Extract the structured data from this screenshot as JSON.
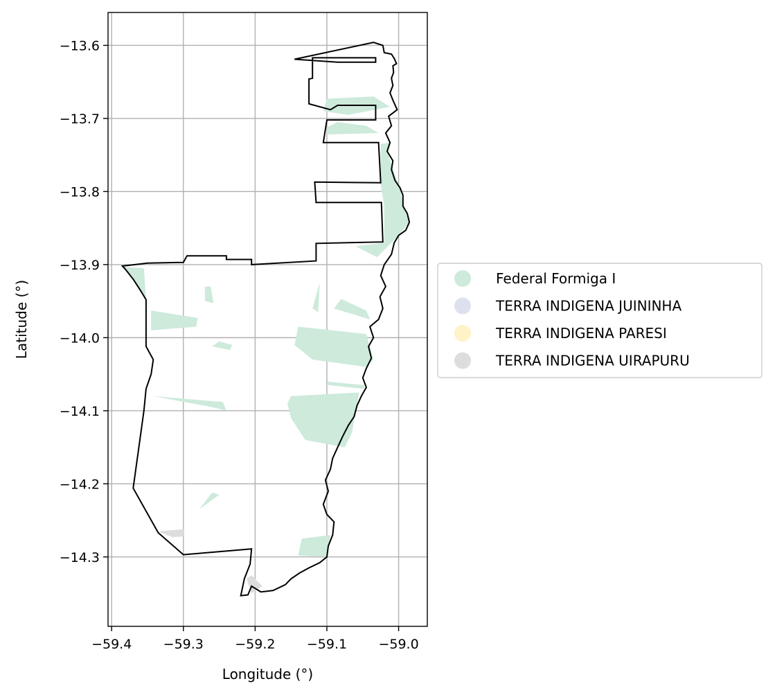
{
  "chart_data": {
    "type": "map",
    "xlabel": "Longitude (°)",
    "ylabel": "Latitude (°)",
    "xlim": [
      -59.405,
      -58.96
    ],
    "ylim": [
      -14.395,
      -13.555
    ],
    "grid": true,
    "xticks": [
      {
        "value": -59.4,
        "label": "−59.4"
      },
      {
        "value": -59.3,
        "label": "−59.3"
      },
      {
        "value": -59.2,
        "label": "−59.2"
      },
      {
        "value": -59.1,
        "label": "−59.1"
      },
      {
        "value": -59.0,
        "label": "−59.0"
      }
    ],
    "yticks": [
      {
        "value": -13.6,
        "label": "−13.6"
      },
      {
        "value": -13.7,
        "label": "−13.7"
      },
      {
        "value": -13.8,
        "label": "−13.8"
      },
      {
        "value": -13.9,
        "label": "−13.9"
      },
      {
        "value": -14.0,
        "label": "−14.0"
      },
      {
        "value": -14.1,
        "label": "−14.1"
      },
      {
        "value": -14.2,
        "label": "−14.2"
      },
      {
        "value": -14.3,
        "label": "−14.3"
      }
    ],
    "legend": {
      "placement": "right",
      "entries": [
        {
          "label": "Federal Formiga I",
          "color": "#cdeadb"
        },
        {
          "label": "TERRA INDIGENA JUININHA",
          "color": "#dde1ef"
        },
        {
          "label": "TERRA INDIGENA PARESI",
          "color": "#fff3c7"
        },
        {
          "label": "TERRA INDIGENA UIRAPURU",
          "color": "#dddddd"
        }
      ]
    },
    "boundary": [
      [
        -59.385,
        -13.902
      ],
      [
        -59.35,
        -13.898
      ],
      [
        -59.3,
        -13.897
      ],
      [
        -59.295,
        -13.888
      ],
      [
        -59.24,
        -13.888
      ],
      [
        -59.24,
        -13.893
      ],
      [
        -59.205,
        -13.893
      ],
      [
        -59.205,
        -13.9
      ],
      [
        -59.115,
        -13.895
      ],
      [
        -59.115,
        -13.871
      ],
      [
        -59.022,
        -13.869
      ],
      [
        -59.024,
        -13.815
      ],
      [
        -59.115,
        -13.815
      ],
      [
        -59.117,
        -13.787
      ],
      [
        -59.025,
        -13.788
      ],
      [
        -59.028,
        -13.733
      ],
      [
        -59.105,
        -13.733
      ],
      [
        -59.1,
        -13.702
      ],
      [
        -59.032,
        -13.702
      ],
      [
        -59.032,
        -13.682
      ],
      [
        -59.085,
        -13.682
      ],
      [
        -59.095,
        -13.688
      ],
      [
        -59.125,
        -13.68
      ],
      [
        -59.125,
        -13.646
      ],
      [
        -59.12,
        -13.645
      ],
      [
        -59.12,
        -13.617
      ],
      [
        -59.032,
        -13.617
      ],
      [
        -59.032,
        -13.623
      ],
      [
        -59.085,
        -13.623
      ],
      [
        -59.145,
        -13.619
      ],
      [
        -59.035,
        -13.596
      ],
      [
        -59.022,
        -13.6
      ],
      [
        -59.02,
        -13.61
      ],
      [
        -59.01,
        -13.612
      ],
      [
        -59.006,
        -13.618
      ],
      [
        -59.003,
        -13.625
      ],
      [
        -59.008,
        -13.628
      ],
      [
        -59.007,
        -13.637
      ],
      [
        -59.01,
        -13.645
      ],
      [
        -59.008,
        -13.655
      ],
      [
        -59.012,
        -13.665
      ],
      [
        -59.008,
        -13.675
      ],
      [
        -59.002,
        -13.688
      ],
      [
        -59.014,
        -13.697
      ],
      [
        -59.01,
        -13.71
      ],
      [
        -59.018,
        -13.72
      ],
      [
        -59.012,
        -13.733
      ],
      [
        -59.016,
        -13.745
      ],
      [
        -59.008,
        -13.758
      ],
      [
        -59.01,
        -13.77
      ],
      [
        -59.005,
        -13.785
      ],
      [
        -58.998,
        -13.795
      ],
      [
        -58.994,
        -13.805
      ],
      [
        -58.994,
        -13.82
      ],
      [
        -58.988,
        -13.83
      ],
      [
        -58.985,
        -13.842
      ],
      [
        -58.99,
        -13.853
      ],
      [
        -59.0,
        -13.86
      ],
      [
        -59.006,
        -13.87
      ],
      [
        -59.01,
        -13.886
      ],
      [
        -59.02,
        -13.9
      ],
      [
        -59.025,
        -13.915
      ],
      [
        -59.018,
        -13.93
      ],
      [
        -59.026,
        -13.944
      ],
      [
        -59.022,
        -13.96
      ],
      [
        -59.028,
        -13.975
      ],
      [
        -59.04,
        -13.985
      ],
      [
        -59.035,
        -14.0
      ],
      [
        -59.042,
        -14.012
      ],
      [
        -59.038,
        -14.028
      ],
      [
        -59.045,
        -14.042
      ],
      [
        -59.05,
        -14.055
      ],
      [
        -59.045,
        -14.068
      ],
      [
        -59.052,
        -14.08
      ],
      [
        -59.058,
        -14.093
      ],
      [
        -59.062,
        -14.108
      ],
      [
        -59.07,
        -14.12
      ],
      [
        -59.078,
        -14.135
      ],
      [
        -59.085,
        -14.15
      ],
      [
        -59.092,
        -14.165
      ],
      [
        -59.095,
        -14.18
      ],
      [
        -59.102,
        -14.195
      ],
      [
        -59.098,
        -14.21
      ],
      [
        -59.105,
        -14.228
      ],
      [
        -59.1,
        -14.242
      ],
      [
        -59.09,
        -14.252
      ],
      [
        -59.092,
        -14.27
      ],
      [
        -59.098,
        -14.285
      ],
      [
        -59.1,
        -14.3
      ],
      [
        -59.11,
        -14.308
      ],
      [
        -59.125,
        -14.315
      ],
      [
        -59.138,
        -14.322
      ],
      [
        -59.15,
        -14.33
      ],
      [
        -59.158,
        -14.338
      ],
      [
        -59.175,
        -14.346
      ],
      [
        -59.192,
        -14.348
      ],
      [
        -59.205,
        -14.34
      ],
      [
        -59.21,
        -14.352
      ],
      [
        -59.22,
        -14.353
      ],
      [
        -59.215,
        -14.33
      ],
      [
        -59.207,
        -14.31
      ],
      [
        -59.205,
        -14.289
      ],
      [
        -59.3,
        -14.297
      ],
      [
        -59.335,
        -14.267
      ],
      [
        -59.37,
        -14.206
      ],
      [
        -59.355,
        -14.1
      ],
      [
        -59.352,
        -14.07
      ],
      [
        -59.345,
        -14.05
      ],
      [
        -59.342,
        -14.03
      ],
      [
        -59.352,
        -14.012
      ],
      [
        -59.352,
        -13.948
      ],
      [
        -59.36,
        -13.935
      ],
      [
        -59.37,
        -13.92
      ],
      [
        -59.378,
        -13.91
      ],
      [
        -59.382,
        -13.905
      ],
      [
        -59.385,
        -13.902
      ]
    ],
    "regions": [
      {
        "legend": "Federal Formiga I",
        "points": [
          [
            -59.385,
            -13.903
          ],
          [
            -59.355,
            -13.905
          ],
          [
            -59.352,
            -13.948
          ],
          [
            -59.36,
            -13.935
          ],
          [
            -59.372,
            -13.915
          ]
        ]
      },
      {
        "legend": "Federal Formiga I",
        "points": [
          [
            -59.345,
            -13.963
          ],
          [
            -59.28,
            -13.973
          ],
          [
            -59.282,
            -13.985
          ],
          [
            -59.345,
            -13.99
          ]
        ]
      },
      {
        "legend": "Federal Formiga I",
        "points": [
          [
            -59.27,
            -13.93
          ],
          [
            -59.262,
            -13.93
          ],
          [
            -59.258,
            -13.953
          ],
          [
            -59.27,
            -13.95
          ]
        ]
      },
      {
        "legend": "Federal Formiga I",
        "points": [
          [
            -59.25,
            -14.005
          ],
          [
            -59.232,
            -14.01
          ],
          [
            -59.235,
            -14.017
          ],
          [
            -59.26,
            -14.012
          ]
        ]
      },
      {
        "legend": "Federal Formiga I",
        "points": [
          [
            -59.342,
            -14.08
          ],
          [
            -59.26,
            -14.095
          ],
          [
            -59.24,
            -14.1
          ],
          [
            -59.245,
            -14.088
          ]
        ]
      },
      {
        "legend": "Federal Formiga I",
        "points": [
          [
            -59.26,
            -14.212
          ],
          [
            -59.278,
            -14.235
          ],
          [
            -59.285,
            -14.24
          ],
          [
            -59.25,
            -14.215
          ]
        ]
      },
      {
        "legend": "Federal Formiga I",
        "points": [
          [
            -59.1,
            -13.673
          ],
          [
            -59.035,
            -13.67
          ],
          [
            -59.012,
            -13.684
          ],
          [
            -59.07,
            -13.695
          ],
          [
            -59.105,
            -13.69
          ]
        ]
      },
      {
        "legend": "Federal Formiga I",
        "points": [
          [
            -59.1,
            -13.712
          ],
          [
            -59.085,
            -13.705
          ],
          [
            -59.045,
            -13.71
          ],
          [
            -59.028,
            -13.72
          ],
          [
            -59.1,
            -13.722
          ]
        ]
      },
      {
        "legend": "Federal Formiga I",
        "points": [
          [
            -59.025,
            -13.735
          ],
          [
            -59.01,
            -13.733
          ],
          [
            -59.016,
            -13.745
          ],
          [
            -59.006,
            -13.775
          ],
          [
            -58.998,
            -13.795
          ],
          [
            -58.994,
            -13.82
          ],
          [
            -58.985,
            -13.842
          ],
          [
            -59.005,
            -13.865
          ],
          [
            -59.03,
            -13.89
          ],
          [
            -59.06,
            -13.875
          ],
          [
            -59.02,
            -13.87
          ],
          [
            -59.02,
            -13.82
          ],
          [
            -59.025,
            -13.79
          ]
        ]
      },
      {
        "legend": "Federal Formiga I",
        "points": [
          [
            -59.08,
            -13.947
          ],
          [
            -59.045,
            -13.963
          ],
          [
            -59.04,
            -13.975
          ],
          [
            -59.09,
            -13.96
          ]
        ]
      },
      {
        "legend": "Federal Formiga I",
        "points": [
          [
            -59.11,
            -13.925
          ],
          [
            -59.12,
            -13.96
          ],
          [
            -59.112,
            -13.965
          ]
        ]
      },
      {
        "legend": "Federal Formiga I",
        "points": [
          [
            -59.14,
            -13.985
          ],
          [
            -59.045,
            -13.995
          ],
          [
            -59.035,
            -14.03
          ],
          [
            -59.045,
            -14.04
          ],
          [
            -59.12,
            -14.03
          ],
          [
            -59.145,
            -14.01
          ]
        ]
      },
      {
        "legend": "Federal Formiga I",
        "points": [
          [
            -59.1,
            -14.06
          ],
          [
            -59.048,
            -14.065
          ],
          [
            -59.048,
            -14.07
          ],
          [
            -59.098,
            -14.065
          ]
        ]
      },
      {
        "legend": "Federal Formiga I",
        "points": [
          [
            -59.15,
            -14.08
          ],
          [
            -59.055,
            -14.075
          ],
          [
            -59.065,
            -14.13
          ],
          [
            -59.075,
            -14.15
          ],
          [
            -59.13,
            -14.14
          ],
          [
            -59.15,
            -14.11
          ],
          [
            -59.155,
            -14.09
          ]
        ]
      },
      {
        "legend": "Federal Formiga I",
        "points": [
          [
            -59.135,
            -14.275
          ],
          [
            -59.095,
            -14.27
          ],
          [
            -59.1,
            -14.3
          ],
          [
            -59.14,
            -14.298
          ]
        ]
      },
      {
        "legend": "TERRA INDIGENA UIRAPURU",
        "points": [
          [
            -59.335,
            -14.265
          ],
          [
            -59.3,
            -14.262
          ],
          [
            -59.3,
            -14.272
          ],
          [
            -59.315,
            -14.273
          ]
        ]
      },
      {
        "legend": "TERRA INDIGENA UIRAPURU",
        "points": [
          [
            -59.212,
            -14.33
          ],
          [
            -59.205,
            -14.35
          ],
          [
            -59.19,
            -14.34
          ],
          [
            -59.205,
            -14.325
          ]
        ]
      }
    ]
  }
}
